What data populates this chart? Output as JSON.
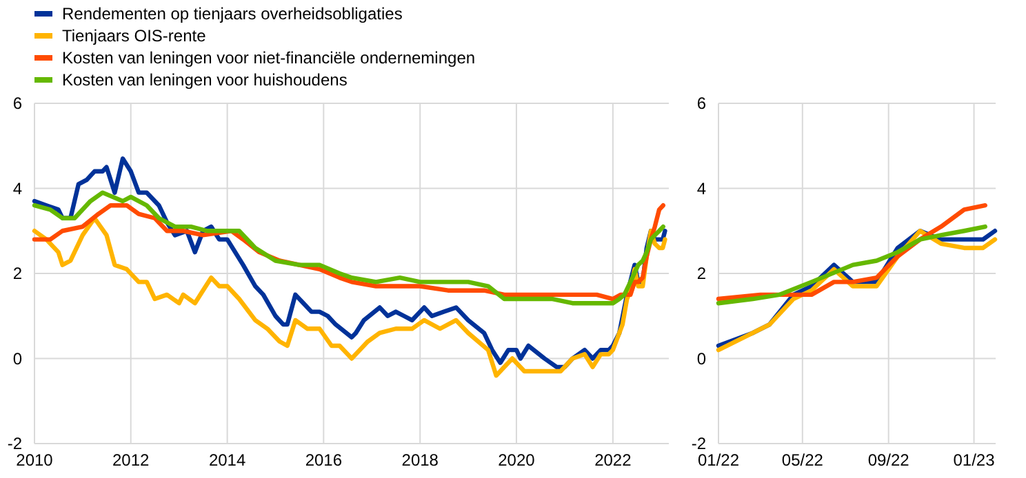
{
  "chart_data": [
    {
      "type": "line",
      "xlim": [
        "2010-01",
        "2023-03"
      ],
      "xticks": [
        "2010",
        "2012",
        "2014",
        "2016",
        "2018",
        "2020",
        "2022"
      ],
      "ylim": [
        -2,
        6
      ],
      "yticks": [
        -2,
        0,
        2,
        4,
        6
      ],
      "grid": true,
      "legend": "top",
      "line_style": "solid",
      "marker": "none",
      "series": [
        {
          "name": "Rendementen op tienjaars overheidsobligaties",
          "color": "#003299",
          "x": [
            "2010-01",
            "2010-04",
            "2010-07",
            "2010-08",
            "2010-10",
            "2010-12",
            "2011-02",
            "2011-04",
            "2011-06",
            "2011-07",
            "2011-09",
            "2011-11",
            "2012-01",
            "2012-03",
            "2012-05",
            "2012-08",
            "2012-10",
            "2012-12",
            "2013-03",
            "2013-05",
            "2013-07",
            "2013-09",
            "2013-11",
            "2014-01",
            "2014-05",
            "2014-08",
            "2014-10",
            "2015-01",
            "2015-03",
            "2015-04",
            "2015-06",
            "2015-08",
            "2015-10",
            "2015-12",
            "2016-02",
            "2016-04",
            "2016-08",
            "2016-09",
            "2016-11",
            "2017-03",
            "2017-05",
            "2017-07",
            "2017-09",
            "2017-11",
            "2018-02",
            "2018-04",
            "2018-07",
            "2018-10",
            "2019-01",
            "2019-05",
            "2019-07",
            "2019-09",
            "2019-11",
            "2020-01",
            "2020-02",
            "2020-04",
            "2020-08",
            "2020-11",
            "2021-01",
            "2021-03",
            "2021-06",
            "2021-08",
            "2021-10",
            "2021-12",
            "2022-01-01",
            "2022-02-19",
            "2022-04-18",
            "2022-06-15",
            "2022-07-12",
            "2022-08-15",
            "2022-09-14",
            "2022-10-16",
            "2022-11-15",
            "2022-12-18",
            "2023-01-14",
            "2023-01-31"
          ],
          "values": [
            3.7,
            3.6,
            3.5,
            3.3,
            3.3,
            4.1,
            4.2,
            4.4,
            4.4,
            4.5,
            3.9,
            4.7,
            4.4,
            3.9,
            3.9,
            3.6,
            3.2,
            2.9,
            3.0,
            2.5,
            3.0,
            3.1,
            2.8,
            2.8,
            2.2,
            1.7,
            1.5,
            1.0,
            0.8,
            0.8,
            1.5,
            1.3,
            1.1,
            1.1,
            1.0,
            0.8,
            0.5,
            0.6,
            0.9,
            1.2,
            1.0,
            1.1,
            1.0,
            0.9,
            1.2,
            1.0,
            1.1,
            1.2,
            0.9,
            0.6,
            0.2,
            -0.1,
            0.2,
            0.2,
            0.0,
            0.3,
            0.0,
            -0.2,
            -0.2,
            0.0,
            0.2,
            0.0,
            0.2,
            0.2,
            0.3,
            0.6,
            1.5,
            2.2,
            1.8,
            1.8,
            2.6,
            3.0,
            2.8,
            2.8,
            2.8,
            3.0
          ]
        },
        {
          "name": "Tienjaars OIS-rente",
          "color": "#ffb400",
          "x": [
            "2010-01",
            "2010-04",
            "2010-07",
            "2010-08",
            "2010-10",
            "2011-01",
            "2011-04",
            "2011-07",
            "2011-09",
            "2011-12",
            "2012-03",
            "2012-05",
            "2012-07",
            "2012-10",
            "2013-01",
            "2013-02",
            "2013-05",
            "2013-07",
            "2013-09",
            "2013-11",
            "2014-01",
            "2014-04",
            "2014-08",
            "2014-11",
            "2015-02",
            "2015-04",
            "2015-06",
            "2015-09",
            "2015-12",
            "2016-03",
            "2016-05",
            "2016-08",
            "2016-12",
            "2017-03",
            "2017-07",
            "2017-11",
            "2018-02",
            "2018-06",
            "2018-10",
            "2019-01",
            "2019-06",
            "2019-08",
            "2019-12",
            "2020-03",
            "2020-07",
            "2020-12",
            "2021-03",
            "2021-06",
            "2021-08",
            "2021-10",
            "2021-12",
            "2022-01-01",
            "2022-02-19",
            "2022-03-15",
            "2022-04-18",
            "2022-05-14",
            "2022-06-15",
            "2022-07-12",
            "2022-08-15",
            "2022-09-14",
            "2022-10-16",
            "2022-11-15",
            "2022-12-18",
            "2023-01-14",
            "2023-01-31"
          ],
          "values": [
            3.0,
            2.8,
            2.5,
            2.2,
            2.3,
            2.9,
            3.3,
            2.9,
            2.2,
            2.1,
            1.8,
            1.8,
            1.4,
            1.5,
            1.3,
            1.5,
            1.3,
            1.6,
            1.9,
            1.7,
            1.7,
            1.4,
            0.9,
            0.7,
            0.4,
            0.3,
            0.9,
            0.7,
            0.7,
            0.3,
            0.3,
            0.0,
            0.4,
            0.6,
            0.7,
            0.7,
            0.9,
            0.7,
            0.9,
            0.6,
            0.2,
            -0.4,
            0.0,
            -0.3,
            -0.3,
            -0.3,
            0.0,
            0.1,
            -0.2,
            0.1,
            0.1,
            0.2,
            0.6,
            0.8,
            1.4,
            1.6,
            2.1,
            1.7,
            1.7,
            2.4,
            3.0,
            2.7,
            2.6,
            2.6,
            2.8
          ]
        },
        {
          "name": "Kosten van leningen voor niet-financiële ondernemingen",
          "color": "#ff4b00",
          "x": [
            "2010-01",
            "2010-05",
            "2010-08",
            "2011-01",
            "2011-05",
            "2011-08",
            "2011-12",
            "2012-03",
            "2012-07",
            "2012-10",
            "2013-02",
            "2013-07",
            "2014-02",
            "2014-05",
            "2014-09",
            "2015-02",
            "2015-07",
            "2015-12",
            "2016-05",
            "2016-08",
            "2017-02",
            "2018-01",
            "2018-08",
            "2019-05",
            "2019-10",
            "2020-03",
            "2020-10",
            "2021-04",
            "2021-09",
            "2022-01-01",
            "2022-03-02",
            "2022-05-14",
            "2022-06-15",
            "2022-07-12",
            "2022-08-15",
            "2022-09-14",
            "2022-10-16",
            "2022-11-15",
            "2022-12-18",
            "2023-01-17"
          ],
          "values": [
            2.8,
            2.8,
            3.0,
            3.1,
            3.4,
            3.6,
            3.6,
            3.4,
            3.3,
            3.0,
            3.0,
            2.9,
            3.0,
            2.8,
            2.5,
            2.3,
            2.2,
            2.1,
            1.9,
            1.8,
            1.7,
            1.7,
            1.6,
            1.6,
            1.5,
            1.5,
            1.5,
            1.5,
            1.5,
            1.4,
            1.5,
            1.5,
            1.8,
            1.8,
            1.9,
            2.4,
            2.8,
            3.1,
            3.5,
            3.6
          ]
        },
        {
          "name": "Kosten van leningen voor huishoudens",
          "color": "#65b800",
          "x": [
            "2010-01",
            "2010-05",
            "2010-08",
            "2010-11",
            "2011-03",
            "2011-06",
            "2011-11",
            "2012-01",
            "2012-05",
            "2012-08",
            "2012-12",
            "2013-04",
            "2013-08",
            "2013-11",
            "2014-04",
            "2014-08",
            "2015-01",
            "2015-07",
            "2015-12",
            "2016-05",
            "2016-08",
            "2017-02",
            "2017-08",
            "2018-01",
            "2018-07",
            "2019-01",
            "2019-06",
            "2019-10",
            "2020-03",
            "2020-10",
            "2021-03",
            "2021-11",
            "2022-01-01",
            "2022-02-19",
            "2022-03-29",
            "2022-05-14",
            "2022-07-12",
            "2022-08-15",
            "2022-09-14",
            "2022-10-16",
            "2022-11-15",
            "2022-12-18",
            "2023-01-17"
          ],
          "values": [
            3.6,
            3.5,
            3.3,
            3.3,
            3.7,
            3.9,
            3.7,
            3.8,
            3.6,
            3.3,
            3.1,
            3.1,
            3.0,
            3.0,
            3.0,
            2.6,
            2.3,
            2.2,
            2.2,
            2.0,
            1.9,
            1.8,
            1.9,
            1.8,
            1.8,
            1.8,
            1.7,
            1.4,
            1.4,
            1.4,
            1.3,
            1.3,
            1.3,
            1.4,
            1.5,
            1.8,
            2.2,
            2.3,
            2.5,
            2.8,
            2.9,
            3.0,
            3.1
          ]
        }
      ]
    },
    {
      "type": "line",
      "xlim": [
        "2022-01-01",
        "2023-02-01"
      ],
      "xticks": [
        {
          "value": "2022-01-01",
          "label": "01/22"
        },
        {
          "value": "2022-05-01",
          "label": "05/22"
        },
        {
          "value": "2022-09-01",
          "label": "09/22"
        },
        {
          "value": "2023-01-01",
          "label": "01/23"
        }
      ],
      "ylim": [
        -2,
        6
      ],
      "yticks": [
        -2,
        0,
        2,
        4,
        6
      ],
      "grid": true,
      "line_style": "solid",
      "marker": "none",
      "series": [
        {
          "color": "#003299",
          "x": [
            "2022-01-01",
            "2022-02-19",
            "2022-03-15",
            "2022-04-18",
            "2022-05-14",
            "2022-06-15",
            "2022-07-12",
            "2022-08-15",
            "2022-09-14",
            "2022-10-16",
            "2022-11-15",
            "2022-12-18",
            "2023-01-14",
            "2023-01-31"
          ],
          "values": [
            0.3,
            0.6,
            0.8,
            1.5,
            1.7,
            2.2,
            1.8,
            1.8,
            2.6,
            3.0,
            2.8,
            2.8,
            2.8,
            3.0
          ]
        },
        {
          "color": "#ffb400",
          "x": [
            "2022-01-01",
            "2022-02-19",
            "2022-03-15",
            "2022-04-18",
            "2022-05-14",
            "2022-06-15",
            "2022-07-12",
            "2022-08-15",
            "2022-09-14",
            "2022-10-16",
            "2022-11-15",
            "2022-12-18",
            "2023-01-14",
            "2023-01-31"
          ],
          "values": [
            0.2,
            0.6,
            0.8,
            1.4,
            1.6,
            2.1,
            1.7,
            1.7,
            2.4,
            3.0,
            2.7,
            2.6,
            2.6,
            2.8
          ]
        },
        {
          "color": "#ff4b00",
          "x": [
            "2022-01-01",
            "2022-03-02",
            "2022-05-14",
            "2022-06-15",
            "2022-07-12",
            "2022-08-15",
            "2022-09-14",
            "2022-10-16",
            "2022-11-15",
            "2022-12-18",
            "2023-01-17"
          ],
          "values": [
            1.4,
            1.5,
            1.5,
            1.8,
            1.8,
            1.9,
            2.4,
            2.8,
            3.1,
            3.5,
            3.6
          ]
        },
        {
          "color": "#65b800",
          "x": [
            "2022-01-01",
            "2022-02-19",
            "2022-03-29",
            "2022-05-14",
            "2022-07-12",
            "2022-08-15",
            "2022-09-14",
            "2022-10-16",
            "2022-11-15",
            "2022-12-18",
            "2023-01-17"
          ],
          "values": [
            1.3,
            1.4,
            1.5,
            1.8,
            2.2,
            2.3,
            2.5,
            2.8,
            2.9,
            3.0,
            3.1
          ]
        }
      ]
    }
  ]
}
